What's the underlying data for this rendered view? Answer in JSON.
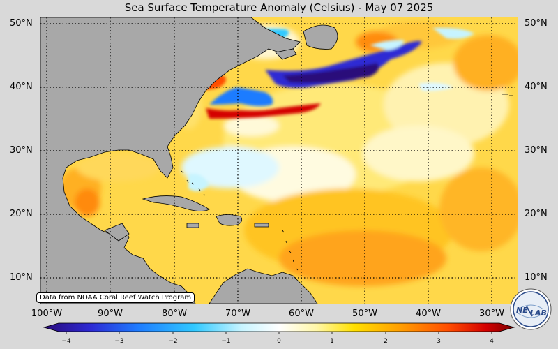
{
  "title": "Sea Surface Temperature Anomaly (Celsius) - May 07 2025",
  "credit": "Data from NOAA Coral Reef Watch Program",
  "logo": {
    "text_left": "NE",
    "text_right": "LAB"
  },
  "map": {
    "lat_labels": [
      "50°N",
      "40°N",
      "30°N",
      "20°N",
      "10°N"
    ],
    "lon_labels": [
      "100°W",
      "90°W",
      "80°W",
      "70°W",
      "60°W",
      "50°W",
      "40°W",
      "30°W"
    ],
    "land_color": "#a8a8a8",
    "ocean_base_color": "#ffd84a"
  },
  "colorbar": {
    "ticks": [
      "−4",
      "−3",
      "−2",
      "−1",
      "0",
      "1",
      "2",
      "3",
      "4"
    ],
    "range": [
      -4,
      4
    ],
    "colors": [
      "#2a0a7a",
      "#2d2ad4",
      "#1f7cff",
      "#31c9ff",
      "#c7f4ff",
      "#ffffff",
      "#fff7a8",
      "#ffe000",
      "#ff9c00",
      "#ff4d00",
      "#d40000",
      "#7a0000"
    ]
  }
}
